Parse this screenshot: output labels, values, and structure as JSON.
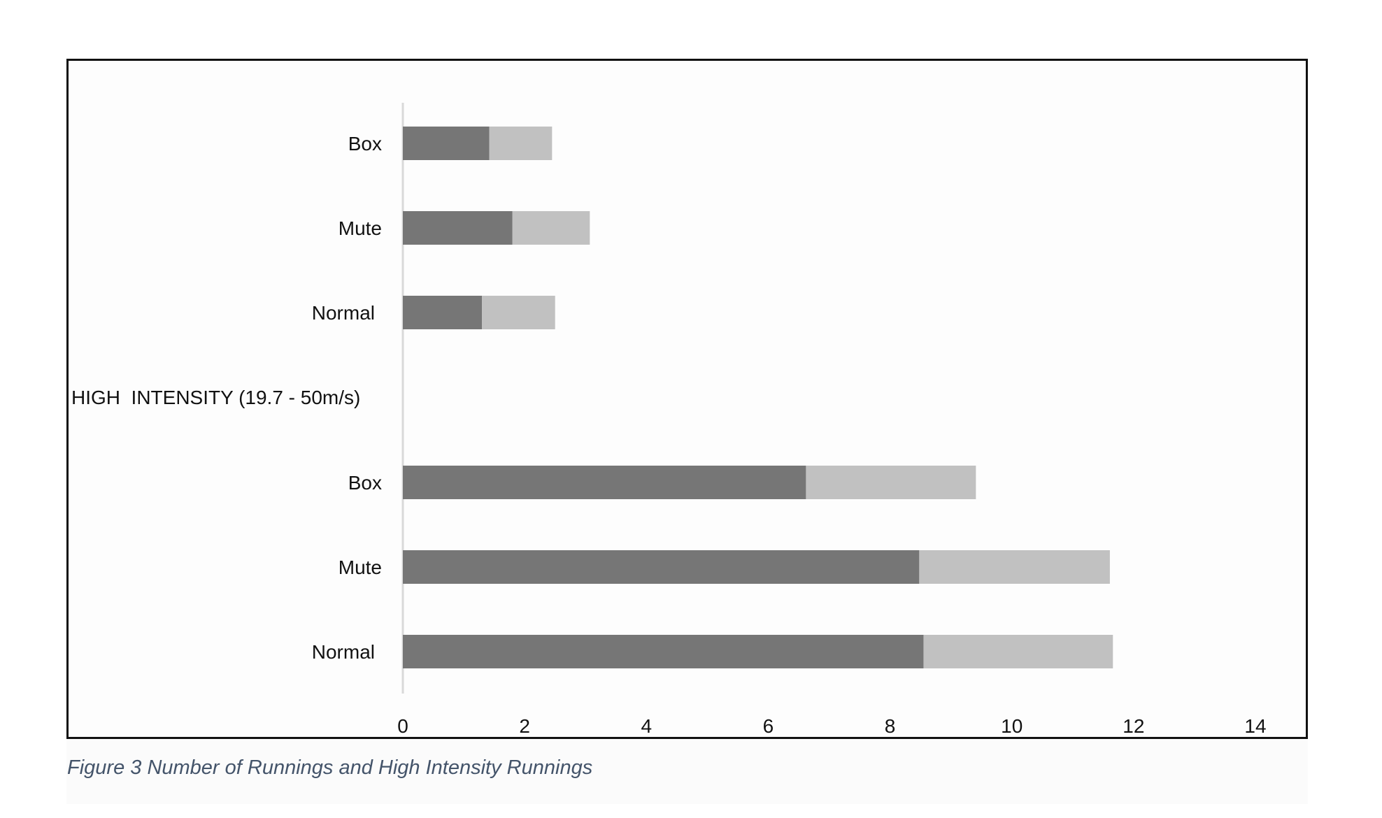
{
  "figure": {
    "caption": "Figure 3 Number of Runnings and High Intensity Runnings"
  },
  "chart_data": {
    "type": "bar",
    "orientation": "horizontal",
    "stacked": true,
    "categories": [
      "Box",
      "Mute",
      "Normal",
      "HIGH  INTENSITY (19.7 - 50m/s)",
      "Box",
      "Mute",
      "Normal"
    ],
    "series": [
      {
        "values": [
          1.42,
          1.8,
          1.3,
          null,
          6.62,
          8.48,
          8.55
        ]
      },
      {
        "values": [
          1.03,
          1.27,
          1.2,
          null,
          2.79,
          3.13,
          3.11
        ]
      }
    ],
    "xlim": [
      0,
      14
    ],
    "xticks": [
      0,
      2,
      4,
      6,
      8,
      10,
      12,
      14
    ],
    "grid": false,
    "colors": [
      "#767676",
      "#c1c1c1"
    ]
  }
}
